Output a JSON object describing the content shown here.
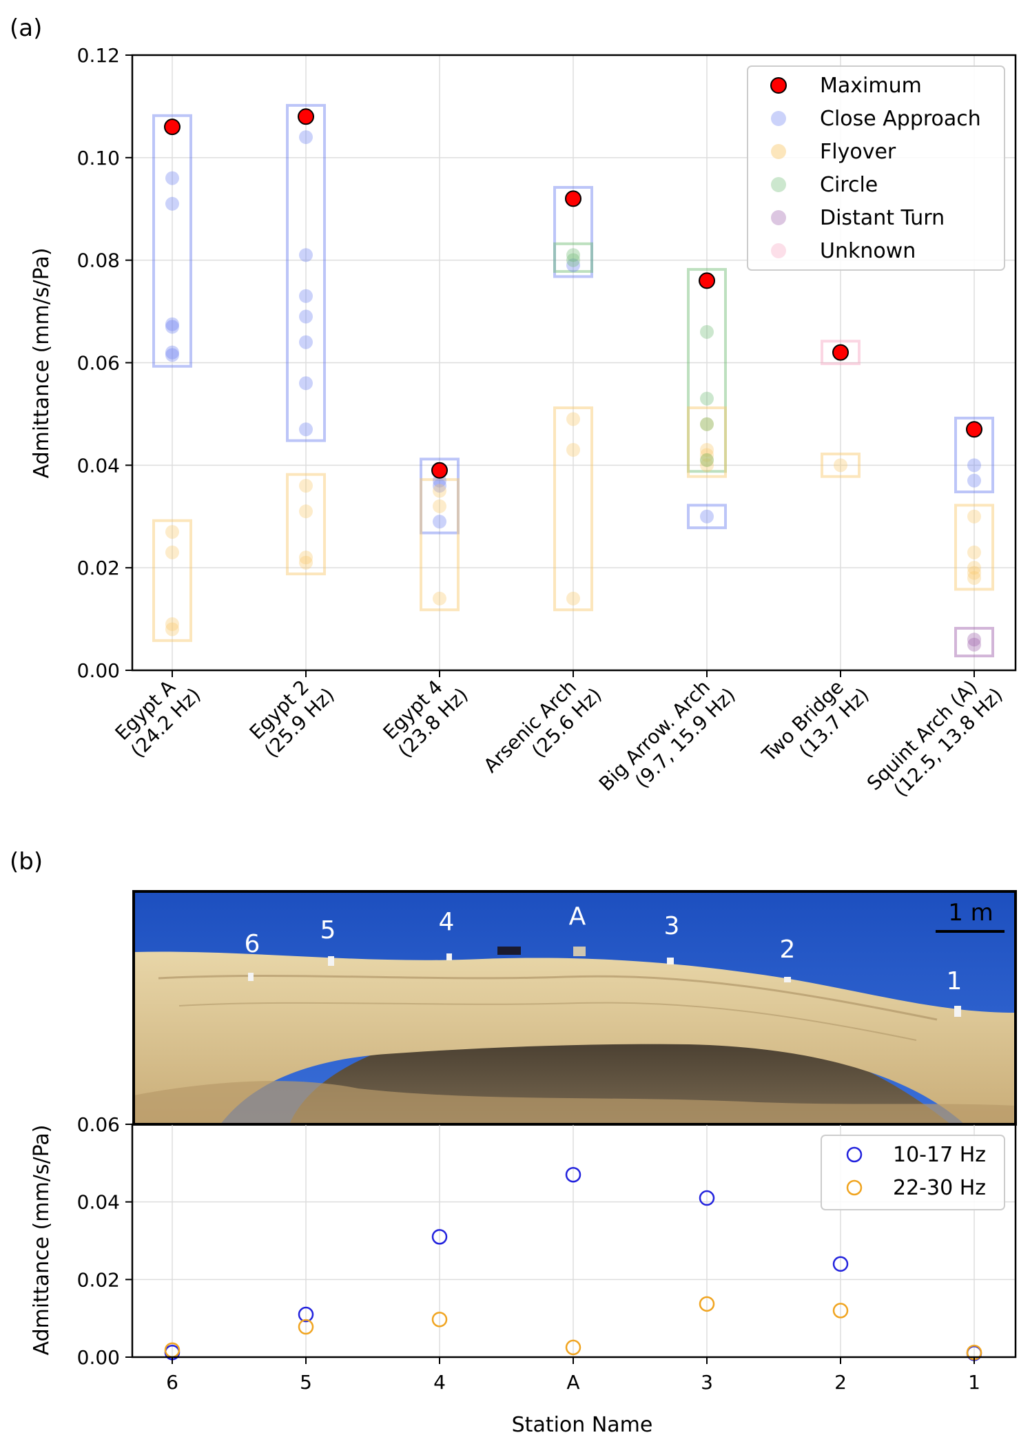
{
  "panel_labels": {
    "a": "(a)",
    "b": "(b)"
  },
  "colors": {
    "close": "#6b7ef0",
    "flyover": "#f9c86a",
    "circle": "#6dbb72",
    "distant": "#9b5ca8",
    "unknown": "#f7a3c0",
    "maximum": "#ff0000",
    "band_low": "#2222dd",
    "band_high": "#f0a420"
  },
  "chart_data": [
    {
      "type": "scatter",
      "id": "panel-a",
      "ylabel": "Admittance (mm/s/Pa)",
      "ylim": [
        0,
        0.12
      ],
      "yticks": [
        "0.00",
        "0.02",
        "0.04",
        "0.06",
        "0.08",
        "0.10",
        "0.12"
      ],
      "categories": [
        {
          "line1": "Egypt A",
          "line2": "(24.2 Hz)"
        },
        {
          "line1": "Egypt 2",
          "line2": "(25.9 Hz)"
        },
        {
          "line1": "Egypt 4",
          "line2": "(23.8 Hz)"
        },
        {
          "line1": "Arsenic Arch",
          "line2": "(25.6 Hz)"
        },
        {
          "line1": "Big Arrow. Arch",
          "line2": "(9.7, 15.9 Hz)"
        },
        {
          "line1": "Two Bridge",
          "line2": "(13.7 Hz)"
        },
        {
          "line1": "Squint Arch (A)",
          "line2": "(12.5, 13.8 Hz)"
        }
      ],
      "legend": [
        {
          "key": "maximum",
          "label": "Maximum"
        },
        {
          "key": "close",
          "label": "Close Approach"
        },
        {
          "key": "flyover",
          "label": "Flyover"
        },
        {
          "key": "circle",
          "label": "Circle"
        },
        {
          "key": "distant",
          "label": "Distant Turn"
        },
        {
          "key": "unknown",
          "label": "Unknown"
        }
      ],
      "series": [
        {
          "key": "close",
          "points": [
            {
              "x": 0,
              "values": [
                0.096,
                0.091,
                0.0675,
                0.067,
                0.062,
                0.0615
              ]
            },
            {
              "x": 1,
              "values": [
                0.104,
                0.081,
                0.073,
                0.069,
                0.064,
                0.056,
                0.047
              ]
            },
            {
              "x": 2,
              "values": [
                0.037,
                0.036,
                0.029
              ]
            },
            {
              "x": 3,
              "values": [
                0.079
              ]
            },
            {
              "x": 4,
              "values": [
                0.03
              ]
            },
            {
              "x": 6,
              "values": [
                0.04,
                0.037
              ]
            }
          ]
        },
        {
          "key": "flyover",
          "points": [
            {
              "x": 0,
              "values": [
                0.027,
                0.023,
                0.009,
                0.008
              ]
            },
            {
              "x": 1,
              "values": [
                0.036,
                0.031,
                0.022,
                0.021
              ]
            },
            {
              "x": 2,
              "values": [
                0.035,
                0.032,
                0.014
              ]
            },
            {
              "x": 3,
              "values": [
                0.049,
                0.043,
                0.014
              ]
            },
            {
              "x": 4,
              "values": [
                0.048,
                0.043,
                0.042,
                0.041,
                0.04
              ]
            },
            {
              "x": 5,
              "values": [
                0.04
              ]
            },
            {
              "x": 6,
              "values": [
                0.03,
                0.023,
                0.02,
                0.019,
                0.018
              ]
            }
          ]
        },
        {
          "key": "circle",
          "points": [
            {
              "x": 3,
              "values": [
                0.081,
                0.08
              ]
            },
            {
              "x": 4,
              "values": [
                0.066,
                0.053,
                0.048,
                0.041
              ]
            }
          ]
        },
        {
          "key": "distant",
          "points": [
            {
              "x": 6,
              "values": [
                0.006,
                0.005
              ]
            }
          ]
        },
        {
          "key": "unknown",
          "points": []
        }
      ],
      "maximum": [
        0.106,
        0.108,
        0.039,
        0.092,
        0.076,
        0.062,
        0.047
      ],
      "ranges": [
        {
          "x": 0,
          "key": "close",
          "min": 0.0615,
          "max": 0.106
        },
        {
          "x": 0,
          "key": "flyover",
          "min": 0.008,
          "max": 0.027
        },
        {
          "x": 1,
          "key": "close",
          "min": 0.047,
          "max": 0.108
        },
        {
          "x": 1,
          "key": "flyover",
          "min": 0.021,
          "max": 0.036
        },
        {
          "x": 2,
          "key": "close",
          "min": 0.029,
          "max": 0.039
        },
        {
          "x": 2,
          "key": "flyover",
          "min": 0.014,
          "max": 0.035
        },
        {
          "x": 3,
          "key": "close",
          "min": 0.079,
          "max": 0.092
        },
        {
          "x": 3,
          "key": "circle",
          "min": 0.08,
          "max": 0.081
        },
        {
          "x": 3,
          "key": "flyover",
          "min": 0.014,
          "max": 0.049
        },
        {
          "x": 4,
          "key": "circle",
          "min": 0.041,
          "max": 0.076
        },
        {
          "x": 4,
          "key": "flyover",
          "min": 0.04,
          "max": 0.049
        },
        {
          "x": 4,
          "key": "close",
          "min": 0.03,
          "max": 0.03
        },
        {
          "x": 5,
          "key": "unknown",
          "min": 0.062,
          "max": 0.062
        },
        {
          "x": 5,
          "key": "flyover",
          "min": 0.04,
          "max": 0.04
        },
        {
          "x": 6,
          "key": "close",
          "min": 0.037,
          "max": 0.047
        },
        {
          "x": 6,
          "key": "flyover",
          "min": 0.018,
          "max": 0.03
        },
        {
          "x": 6,
          "key": "distant",
          "min": 0.005,
          "max": 0.006
        }
      ]
    },
    {
      "type": "scatter",
      "id": "panel-b",
      "xlabel": "Station Name",
      "ylabel": "Admittance (mm/s/Pa)",
      "ylim": [
        0,
        0.06
      ],
      "yticks": [
        "0.00",
        "0.02",
        "0.04",
        "0.06"
      ],
      "categories": [
        "6",
        "5",
        "4",
        "A",
        "3",
        "2",
        "1"
      ],
      "series": [
        {
          "key": "band_low",
          "name": "10-17 Hz",
          "values": [
            0.0012,
            0.011,
            0.031,
            0.047,
            0.041,
            0.024,
            0.001
          ]
        },
        {
          "key": "band_high",
          "name": "22-30 Hz",
          "values": [
            0.0018,
            0.0078,
            0.0097,
            0.0025,
            0.0137,
            0.012,
            0.0012
          ]
        }
      ]
    }
  ],
  "photo": {
    "scale_label": "1 m",
    "station_labels": [
      "6",
      "5",
      "4",
      "A",
      "3",
      "2",
      "1"
    ]
  }
}
